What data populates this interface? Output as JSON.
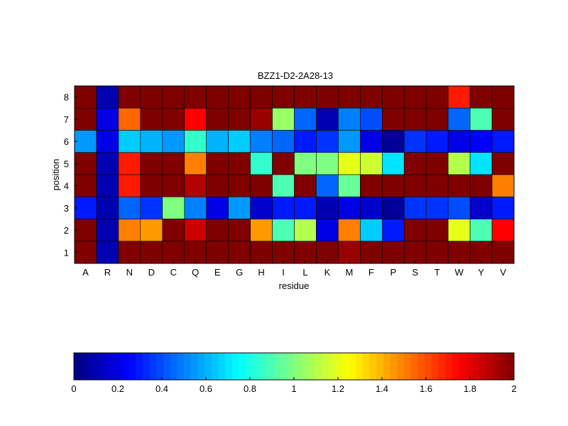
{
  "chart_data": {
    "type": "heatmap",
    "title": "BZZ1-D2-2A28-13",
    "xlabel": "residue",
    "ylabel": "position",
    "x_categories": [
      "A",
      "R",
      "N",
      "D",
      "C",
      "Q",
      "E",
      "G",
      "H",
      "I",
      "L",
      "K",
      "M",
      "F",
      "P",
      "S",
      "T",
      "W",
      "Y",
      "V"
    ],
    "y_categories": [
      "1",
      "2",
      "3",
      "4",
      "5",
      "6",
      "7",
      "8"
    ],
    "rows": [
      {
        "position": "8",
        "values": [
          2.0,
          0.1,
          2.0,
          2.0,
          2.0,
          2.0,
          2.0,
          2.0,
          2.0,
          2.0,
          2.0,
          2.0,
          2.0,
          2.0,
          2.0,
          2.0,
          2.0,
          1.7,
          2.0,
          2.0
        ]
      },
      {
        "position": "7",
        "values": [
          2.0,
          0.2,
          1.55,
          2.0,
          2.0,
          1.75,
          2.0,
          2.0,
          1.95,
          1.05,
          0.45,
          0.1,
          0.5,
          0.4,
          2.0,
          2.0,
          2.0,
          0.45,
          0.9,
          2.0
        ]
      },
      {
        "position": "6",
        "values": [
          0.55,
          0.2,
          0.65,
          0.6,
          0.55,
          0.85,
          0.6,
          0.65,
          0.5,
          0.45,
          0.3,
          0.35,
          0.55,
          0.2,
          0.05,
          0.35,
          0.3,
          0.2,
          0.25,
          0.3
        ]
      },
      {
        "position": "5",
        "values": [
          2.0,
          0.1,
          1.7,
          2.0,
          2.0,
          1.5,
          2.0,
          2.0,
          0.85,
          2.0,
          1.0,
          1.0,
          1.2,
          1.15,
          0.7,
          2.0,
          2.0,
          1.1,
          0.7,
          2.0
        ]
      },
      {
        "position": "4",
        "values": [
          2.0,
          0.1,
          1.7,
          2.0,
          2.0,
          1.9,
          2.0,
          2.0,
          2.0,
          0.9,
          2.0,
          0.45,
          0.95,
          2.0,
          2.0,
          2.0,
          2.0,
          2.0,
          2.0,
          1.5
        ]
      },
      {
        "position": "3",
        "values": [
          0.3,
          0.1,
          0.45,
          0.35,
          1.0,
          0.5,
          0.2,
          0.55,
          0.15,
          0.3,
          0.3,
          0.1,
          0.2,
          0.15,
          0.05,
          0.35,
          0.35,
          0.4,
          0.15,
          0.3
        ]
      },
      {
        "position": "2",
        "values": [
          2.0,
          0.1,
          1.5,
          1.45,
          2.0,
          1.85,
          2.0,
          2.0,
          1.45,
          0.9,
          1.1,
          0.2,
          1.5,
          0.65,
          0.3,
          2.0,
          2.0,
          1.2,
          0.9,
          1.75
        ]
      },
      {
        "position": "1",
        "values": [
          2.0,
          0.1,
          2.0,
          2.0,
          2.0,
          2.0,
          2.0,
          2.0,
          2.0,
          2.0,
          2.0,
          2.0,
          1.95,
          2.0,
          2.0,
          2.0,
          2.0,
          2.0,
          2.0,
          2.0
        ]
      }
    ],
    "colorbar": {
      "colormap": "jet",
      "clim": [
        0,
        2
      ],
      "ticks": [
        0,
        0.2,
        0.4,
        0.6,
        0.8,
        1,
        1.2,
        1.4,
        1.6,
        1.8,
        2
      ],
      "tick_labels": [
        "0",
        "0.2",
        "0.4",
        "0.6",
        "0.8",
        "1",
        "1.2",
        "1.4",
        "1.6",
        "1.8",
        "2"
      ],
      "placement": "bottom"
    }
  }
}
